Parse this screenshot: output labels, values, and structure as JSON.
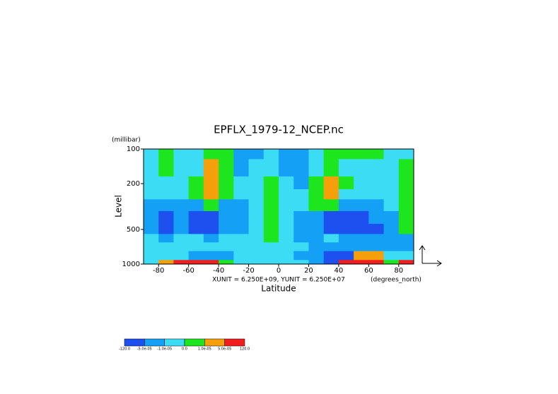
{
  "chart_data": {
    "type": "contour",
    "title": "EPFLX_1979-12_NCEP.nc",
    "y_unit": "(millibar)",
    "ylabel": "Level",
    "xlabel": "Latitude",
    "x_unit": "(degrees_north)",
    "annotation": "XUNIT = 6.250E+09, YUNIT = 6.250E+07",
    "xlim": [
      -90,
      90
    ],
    "xticks": [
      -80,
      -60,
      -40,
      -20,
      0,
      20,
      40,
      60,
      80
    ],
    "ylim": [
      100,
      1000
    ],
    "ylog": true,
    "yinverted": true,
    "yticks": [
      100,
      200,
      500,
      1000
    ],
    "x": [
      -85,
      -75,
      -65,
      -55,
      -45,
      -35,
      -25,
      -15,
      -5,
      5,
      15,
      25,
      35,
      45,
      55,
      65,
      75,
      85
    ],
    "levels": [
      100,
      150,
      200,
      250,
      300,
      400,
      500,
      600,
      700,
      850,
      1000
    ],
    "z": [
      [
        -5e-06,
        5e-06,
        -5e-06,
        -5e-06,
        5e-06,
        5e-06,
        -3e-05,
        -3e-05,
        -5e-06,
        -3e-05,
        -3e-05,
        -5e-06,
        5e-06,
        5e-06,
        5e-06,
        5e-06,
        -5e-06,
        -5e-06
      ],
      [
        -5e-06,
        5e-06,
        -5e-06,
        -5e-06,
        3e-05,
        5e-06,
        -3e-05,
        -5e-06,
        -5e-06,
        -3e-05,
        -3e-05,
        -5e-06,
        5e-06,
        -5e-06,
        -5e-06,
        -5e-06,
        -5e-06,
        5e-06
      ],
      [
        -5e-06,
        -5e-06,
        -5e-06,
        5e-06,
        3e-05,
        5e-06,
        -5e-06,
        -5e-06,
        5e-06,
        -5e-06,
        -3e-05,
        5e-06,
        3e-05,
        5e-06,
        -5e-06,
        -5e-06,
        -5e-06,
        5e-06
      ],
      [
        -5e-06,
        -5e-06,
        -5e-06,
        5e-06,
        3e-05,
        5e-06,
        -5e-06,
        -5e-06,
        5e-06,
        -5e-06,
        -5e-06,
        5e-06,
        3e-05,
        -5e-06,
        -5e-06,
        -5e-06,
        -5e-06,
        5e-06
      ],
      [
        -3e-05,
        -3e-05,
        -3e-05,
        -3e-05,
        5e-06,
        -3e-05,
        -3e-05,
        -5e-06,
        5e-06,
        -5e-06,
        -5e-06,
        5e-06,
        5e-06,
        -3e-05,
        -3e-05,
        -3e-05,
        -5e-06,
        5e-06
      ],
      [
        -3e-05,
        -7e-05,
        -3e-05,
        -7e-05,
        -7e-05,
        -3e-05,
        -3e-05,
        -5e-06,
        5e-06,
        -5e-06,
        -3e-05,
        -3e-05,
        -7e-05,
        -7e-05,
        -7e-05,
        -3e-05,
        -3e-05,
        5e-06
      ],
      [
        -3e-05,
        -7e-05,
        -3e-05,
        -7e-05,
        -7e-05,
        -3e-05,
        -3e-05,
        -5e-06,
        5e-06,
        -5e-06,
        -3e-05,
        -3e-05,
        -7e-05,
        -7e-05,
        -7e-05,
        -7e-05,
        -3e-05,
        5e-06
      ],
      [
        -5e-06,
        -3e-05,
        -5e-06,
        -5e-06,
        -3e-05,
        -5e-06,
        -5e-06,
        -5e-06,
        5e-06,
        -5e-06,
        -3e-05,
        -3e-05,
        -5e-06,
        -3e-05,
        -3e-05,
        -3e-05,
        -3e-05,
        -3e-05
      ],
      [
        -5e-06,
        -5e-06,
        -5e-06,
        -5e-06,
        -5e-06,
        -5e-06,
        -5e-06,
        -5e-06,
        -5e-06,
        -5e-06,
        -5e-06,
        -3e-05,
        -3e-05,
        -3e-05,
        -3e-05,
        -3e-05,
        -3e-05,
        -3e-05
      ],
      [
        -5e-06,
        -5e-06,
        -5e-06,
        -3e-05,
        -3e-05,
        -3e-05,
        -5e-06,
        -5e-06,
        -5e-06,
        -5e-06,
        -3e-05,
        -3e-05,
        -7e-05,
        -7e-05,
        3e-05,
        3e-05,
        -5e-06,
        -5e-06
      ],
      [
        -5e-06,
        3e-05,
        7e-05,
        7e-05,
        7e-05,
        5e-06,
        -5e-06,
        -5e-06,
        -5e-06,
        -5e-06,
        -5e-06,
        -3e-05,
        -7e-05,
        7e-05,
        7e-05,
        7e-05,
        5e-06,
        7e-05
      ]
    ],
    "colorbar": {
      "bounds": [
        {
          "value": -120,
          "label": "-120.0"
        },
        {
          "value": -5e-05,
          "label": "-5.0e-05"
        },
        {
          "value": -1e-05,
          "label": "-1.0e-05"
        },
        {
          "value": 0,
          "label": "0.0"
        },
        {
          "value": 1e-05,
          "label": "1.0e-05"
        },
        {
          "value": 5e-05,
          "label": "5.0e-05"
        },
        {
          "value": 120,
          "label": "120.0"
        }
      ],
      "colors": [
        "#1e50f0",
        "#14a0f5",
        "#3cdcf5",
        "#1ee61e",
        "#f5a00a",
        "#f01e1e"
      ]
    }
  }
}
